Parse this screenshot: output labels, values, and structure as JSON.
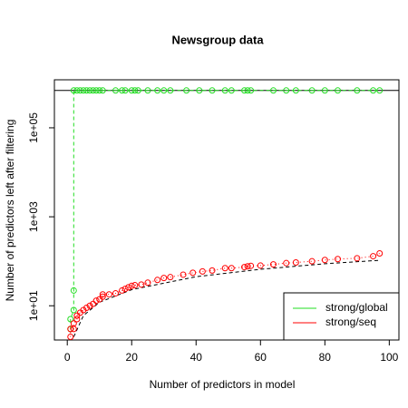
{
  "chart_data": {
    "type": "scatter",
    "title": "Newsgroup data",
    "x_label": "Number of predictors in model",
    "y_label": "Number of predictors left after filtering",
    "log_y": true,
    "legend": "bottomright",
    "xlim": [
      -4,
      103
    ],
    "xticks": [
      0,
      20,
      40,
      60,
      80,
      100
    ],
    "ylim": [
      1.7,
      1200000
    ],
    "yticks": [
      {
        "value": 10,
        "label": "1e+01"
      },
      {
        "value": 1000,
        "label": "1e+03"
      },
      {
        "value": 100000,
        "label": "1e+05"
      }
    ],
    "hline": {
      "value": 690000,
      "color": "#000000"
    },
    "curve": {
      "color": "#000000",
      "x": [
        2,
        5,
        10,
        20,
        40,
        60,
        80,
        97
      ],
      "values": [
        2,
        6,
        12,
        23,
        45,
        66,
        88,
        105
      ]
    },
    "series": [
      {
        "name": "strong/global",
        "color": "#22dd22",
        "line": "dashed",
        "x": [
          1,
          1,
          2,
          2,
          2,
          3,
          4,
          5,
          6,
          7,
          8,
          9,
          10,
          11,
          15,
          17,
          18,
          20,
          21,
          22,
          25,
          28,
          30,
          32,
          37,
          41,
          45,
          49,
          51,
          55,
          56,
          57,
          64,
          68,
          71,
          76,
          80,
          84,
          90,
          95,
          97
        ],
        "values": [
          3,
          5,
          8,
          22,
          690000,
          690000,
          690000,
          690000,
          690000,
          690000,
          690000,
          690000,
          690000,
          690000,
          690000,
          690000,
          690000,
          690000,
          690000,
          690000,
          690000,
          690000,
          690000,
          690000,
          690000,
          690000,
          690000,
          690000,
          690000,
          690000,
          690000,
          690000,
          690000,
          690000,
          690000,
          690000,
          690000,
          690000,
          690000,
          690000,
          690000
        ]
      },
      {
        "name": "strong/seq",
        "color": "#ff0000",
        "line": "dotted",
        "x": [
          1,
          1,
          2,
          2,
          3,
          3,
          4,
          5,
          6,
          7,
          8,
          9,
          10,
          11,
          11,
          13,
          15,
          17,
          18,
          19,
          20,
          21,
          23,
          25,
          28,
          30,
          32,
          36,
          39,
          42,
          45,
          49,
          51,
          55,
          56,
          57,
          60,
          64,
          68,
          71,
          76,
          80,
          84,
          90,
          95,
          97
        ],
        "values": [
          2,
          3,
          3,
          4,
          5,
          6,
          7,
          8,
          9,
          10,
          11,
          13,
          14,
          16,
          18,
          18,
          19,
          22,
          24,
          26,
          28,
          29,
          30,
          33,
          38,
          42,
          44,
          50,
          55,
          59,
          62,
          70,
          70,
          74,
          77,
          79,
          80,
          85,
          91,
          94,
          100,
          107,
          112,
          117,
          130,
          150
        ]
      }
    ]
  }
}
